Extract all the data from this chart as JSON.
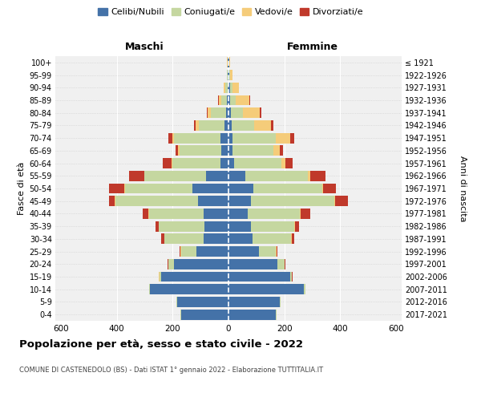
{
  "age_groups": [
    "0-4",
    "5-9",
    "10-14",
    "15-19",
    "20-24",
    "25-29",
    "30-34",
    "35-39",
    "40-44",
    "45-49",
    "50-54",
    "55-59",
    "60-64",
    "65-69",
    "70-74",
    "75-79",
    "80-84",
    "85-89",
    "90-94",
    "95-99",
    "100+"
  ],
  "birth_years": [
    "2017-2021",
    "2012-2016",
    "2007-2011",
    "2002-2006",
    "1997-2001",
    "1992-1996",
    "1987-1991",
    "1982-1986",
    "1977-1981",
    "1972-1976",
    "1967-1971",
    "1962-1966",
    "1957-1961",
    "1952-1956",
    "1947-1951",
    "1942-1946",
    "1937-1941",
    "1932-1936",
    "1927-1931",
    "1922-1926",
    "≤ 1921"
  ],
  "maschi": {
    "celibi": [
      170,
      185,
      280,
      240,
      195,
      115,
      90,
      85,
      90,
      110,
      130,
      80,
      30,
      25,
      30,
      15,
      8,
      5,
      4,
      2,
      2
    ],
    "coniugati": [
      1,
      2,
      3,
      8,
      20,
      55,
      140,
      165,
      195,
      295,
      240,
      220,
      170,
      150,
      165,
      90,
      55,
      20,
      8,
      3,
      2
    ],
    "vedovi": [
      0,
      0,
      0,
      1,
      1,
      1,
      1,
      1,
      1,
      2,
      2,
      2,
      5,
      5,
      5,
      12,
      12,
      10,
      5,
      2,
      1
    ],
    "divorziati": [
      0,
      0,
      0,
      1,
      2,
      5,
      10,
      10,
      20,
      20,
      55,
      55,
      30,
      10,
      15,
      5,
      2,
      1,
      0,
      0,
      0
    ]
  },
  "femmine": {
    "nubili": [
      170,
      185,
      270,
      220,
      175,
      110,
      85,
      80,
      70,
      80,
      90,
      60,
      20,
      15,
      15,
      12,
      8,
      5,
      5,
      2,
      2
    ],
    "coniugate": [
      1,
      2,
      5,
      8,
      25,
      60,
      140,
      155,
      185,
      300,
      245,
      225,
      170,
      145,
      155,
      80,
      45,
      20,
      8,
      3,
      2
    ],
    "vedove": [
      0,
      0,
      0,
      0,
      1,
      1,
      1,
      2,
      2,
      3,
      5,
      8,
      15,
      25,
      50,
      60,
      60,
      50,
      25,
      8,
      3
    ],
    "divorziate": [
      0,
      0,
      0,
      1,
      2,
      5,
      10,
      15,
      35,
      45,
      45,
      55,
      25,
      10,
      15,
      10,
      5,
      2,
      0,
      0,
      0
    ]
  },
  "colors": {
    "celibi": "#4472a8",
    "coniugati": "#c5d7a0",
    "vedovi": "#f5cc7a",
    "divorziati": "#c0392b"
  },
  "xlim": 620,
  "title": "Popolazione per età, sesso e stato civile - 2022",
  "subtitle": "COMUNE DI CASTENEDOLO (BS) - Dati ISTAT 1° gennaio 2022 - Elaborazione TUTTITALIA.IT",
  "xlabel_left": "Maschi",
  "xlabel_right": "Femmine",
  "ylabel": "Fasce di età",
  "ylabel_right": "Anni di nascita",
  "bg_color": "#f0f0f0"
}
